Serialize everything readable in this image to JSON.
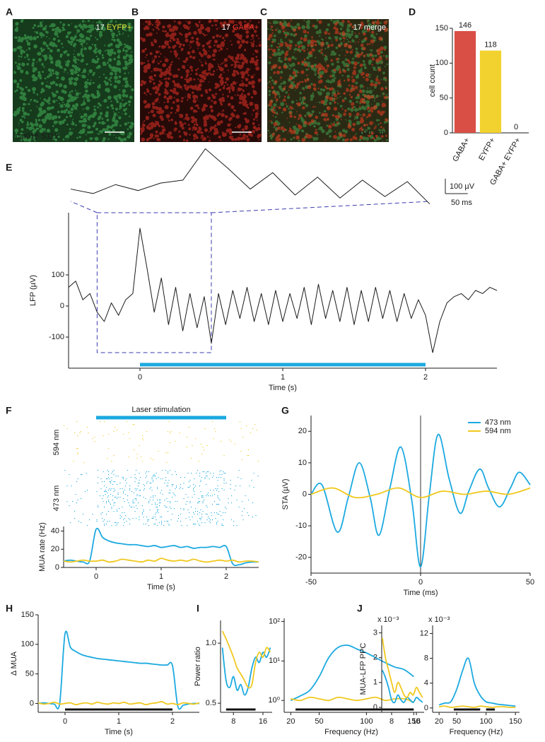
{
  "panel_labels": [
    "A",
    "B",
    "C",
    "D",
    "E",
    "F",
    "G",
    "H",
    "I",
    "J"
  ],
  "images": [
    {
      "number": "17",
      "label": "EYFP+",
      "label_color": "#e8e83a",
      "caption": "cat016 S112"
    },
    {
      "number": "17",
      "label": "GABA+",
      "label_color": "#e8342a"
    },
    {
      "number": "17",
      "label": "merge",
      "label_color": "#ffffff",
      "scale_label": "100 µm"
    }
  ],
  "chart_data": [
    {
      "type": "bar",
      "y_label": "cell count",
      "categories": [
        "GABA+",
        "EYFP+",
        "GABA+ EYFP+"
      ],
      "values": [
        146,
        118,
        0
      ],
      "colors": [
        "#d94f45",
        "#f2d22e",
        "#d94f45"
      ],
      "ylim": [
        0,
        150
      ],
      "yticks": [
        0,
        50,
        100,
        150
      ]
    },
    {
      "type": "line",
      "y_label": "LFP (µV)",
      "x_label": "Time (s)",
      "x": [
        -0.5,
        -0.45,
        -0.4,
        -0.35,
        -0.3,
        -0.25,
        -0.2,
        -0.15,
        -0.1,
        -0.05,
        0,
        0.05,
        0.1,
        0.15,
        0.2,
        0.25,
        0.3,
        0.35,
        0.4,
        0.45,
        0.5,
        0.55,
        0.6,
        0.65,
        0.7,
        0.75,
        0.8,
        0.85,
        0.9,
        0.95,
        1,
        1.05,
        1.1,
        1.15,
        1.2,
        1.25,
        1.3,
        1.35,
        1.4,
        1.45,
        1.5,
        1.55,
        1.6,
        1.65,
        1.7,
        1.75,
        1.8,
        1.85,
        1.9,
        1.95,
        2,
        2.05,
        2.1,
        2.15,
        2.2,
        2.25,
        2.3,
        2.35,
        2.4,
        2.45,
        2.5
      ],
      "series": [
        {
          "color": "#1a1a1a",
          "values": [
            60,
            80,
            20,
            40,
            -20,
            -50,
            10,
            -30,
            20,
            40,
            250,
            120,
            -20,
            90,
            -60,
            60,
            -80,
            40,
            -70,
            30,
            -120,
            40,
            -60,
            50,
            -40,
            60,
            -50,
            40,
            -60,
            50,
            -50,
            40,
            -40,
            60,
            -60,
            70,
            -40,
            50,
            -50,
            60,
            -60,
            50,
            -50,
            60,
            -40,
            50,
            -50,
            40,
            -40,
            20,
            -30,
            -150,
            -50,
            10,
            30,
            40,
            20,
            50,
            40,
            60,
            50
          ]
        }
      ],
      "xlim": [
        -0.5,
        2.5
      ],
      "ylim": [
        -200,
        300
      ],
      "xticks": [
        0,
        1,
        2
      ],
      "yticks": [
        -100,
        0,
        100
      ],
      "stimulus": [
        0,
        2
      ],
      "stimulus_color": "#1ba9e0",
      "zoom_window": {
        "x": [
          -0.3,
          0.5
        ],
        "y": [
          -150,
          300
        ]
      },
      "scale_bar": {
        "y": 100,
        "y_label": "100 µV",
        "x": 0.05,
        "x_label": "50 ms"
      }
    },
    {
      "type": "line",
      "y_label": "MUA rate (Hz)",
      "x_label": "Time (s)",
      "x": [
        -0.5,
        -0.4,
        -0.3,
        -0.2,
        -0.1,
        0,
        0.1,
        0.2,
        0.3,
        0.4,
        0.5,
        0.6,
        0.7,
        0.8,
        0.9,
        1,
        1.1,
        1.2,
        1.3,
        1.4,
        1.5,
        1.6,
        1.7,
        1.8,
        1.9,
        2,
        2.1,
        2.2,
        2.3,
        2.4,
        2.5
      ],
      "series": [
        {
          "name": "473 nm",
          "color": "#1ba9e0",
          "values": [
            7,
            8,
            7,
            6,
            7,
            42,
            33,
            29,
            27,
            26,
            25,
            25,
            24,
            23,
            24,
            22,
            23,
            24,
            22,
            23,
            21,
            22,
            22,
            23,
            22,
            23,
            4,
            3,
            5,
            6,
            6
          ]
        },
        {
          "name": "594 nm",
          "color": "#f0c81e",
          "values": [
            7,
            6,
            7,
            8,
            7,
            7,
            8,
            6,
            7,
            9,
            8,
            7,
            6,
            8,
            7,
            10,
            8,
            7,
            8,
            7,
            9,
            7,
            6,
            7,
            8,
            7,
            8,
            6,
            7,
            7,
            6
          ]
        }
      ],
      "xlim": [
        -0.5,
        2.5
      ],
      "ylim": [
        0,
        45
      ],
      "xticks": [
        0,
        1,
        2
      ],
      "yticks": [
        0,
        20,
        40
      ],
      "stimulus": [
        0,
        2
      ],
      "stimulus_color": "#1ba9e0",
      "stimulus_label": "Laser stimulation"
    },
    {
      "type": "line",
      "y_label": "STA (µV)",
      "x_label": "Time (ms)",
      "series": [
        {
          "name": "473 nm",
          "color": "#1ba9e0",
          "x": [
            -50,
            -45,
            -38,
            -33,
            -28,
            -23,
            -19,
            -14,
            -9,
            -4,
            0,
            4,
            8,
            13,
            18,
            22,
            27,
            31,
            36,
            41,
            45,
            50
          ],
          "values": [
            0,
            3,
            -12,
            -1,
            10,
            -1,
            -13,
            2,
            15,
            -2,
            -23,
            0,
            19,
            5,
            -6,
            1,
            8,
            2,
            -4,
            2,
            7,
            3
          ]
        },
        {
          "name": "594 nm",
          "color": "#f0c81e",
          "x": [
            -50,
            -40,
            -30,
            -20,
            -10,
            0,
            10,
            20,
            30,
            40,
            50
          ],
          "values": [
            0,
            2,
            -1,
            0,
            2,
            -1,
            1,
            0,
            1,
            0,
            2
          ]
        }
      ],
      "xlim": [
        -50,
        50
      ],
      "ylim": [
        -25,
        25
      ],
      "xticks": [
        -50,
        0,
        50
      ],
      "yticks": [
        -20,
        -10,
        0,
        10,
        20
      ],
      "vline": 0,
      "legend": "upper right"
    },
    {
      "type": "line",
      "y_label": "Δ MUA",
      "x_label": "Time (s)",
      "x": [
        -0.5,
        -0.4,
        -0.3,
        -0.2,
        -0.1,
        0,
        0.1,
        0.2,
        0.3,
        0.4,
        0.5,
        0.6,
        0.7,
        0.8,
        0.9,
        1,
        1.1,
        1.2,
        1.3,
        1.4,
        1.5,
        1.6,
        1.7,
        1.8,
        1.9,
        2,
        2.1,
        2.2,
        2.3,
        2.4,
        2.5
      ],
      "series": [
        {
          "color": "#1ba9e0",
          "values": [
            0,
            1,
            0,
            -1,
            0,
            118,
            95,
            88,
            83,
            80,
            78,
            76,
            75,
            74,
            73,
            72,
            71,
            70,
            69,
            68,
            68,
            67,
            66,
            65,
            65,
            64,
            -5,
            -3,
            -1,
            0,
            0
          ]
        },
        {
          "color": "#f0c81e",
          "values": [
            1,
            -1,
            0,
            2,
            -1,
            0,
            1,
            -2,
            0,
            1,
            -1,
            2,
            0,
            -1,
            1,
            0,
            2,
            -1,
            0,
            1,
            -2,
            0,
            1,
            3,
            -1,
            0,
            -2,
            1,
            0,
            -1,
            1
          ]
        }
      ],
      "xlim": [
        -0.5,
        2.5
      ],
      "ylim": [
        -15,
        150
      ],
      "xticks": [
        0,
        1,
        2
      ],
      "yticks": [
        0,
        50,
        100,
        150
      ],
      "significance": [
        [
          0,
          2
        ]
      ]
    },
    {
      "type": "line",
      "y_label": "Power ratio",
      "x": [
        5,
        6,
        7,
        8,
        9,
        10,
        11,
        12,
        13,
        14,
        15,
        16,
        17,
        18
      ],
      "series": [
        {
          "color": "#1ba9e0",
          "values": [
            0.95,
            0.65,
            0.6,
            0.68,
            0.58,
            0.62,
            0.55,
            0.6,
            0.75,
            0.85,
            0.8,
            0.9,
            0.85,
            0.95
          ]
        },
        {
          "color": "#f0c81e",
          "values": [
            1.15,
            1.05,
            0.95,
            0.85,
            0.75,
            0.7,
            0.65,
            0.6,
            0.62,
            0.8,
            0.9,
            0.85,
            0.95,
            0.9
          ]
        }
      ],
      "log_y": true,
      "xlim": [
        4.5,
        18.5
      ],
      "ylim": [
        0.45,
        1.3
      ],
      "xticks": [
        8,
        16
      ],
      "yticks": [
        0.5,
        {
          "value": 1,
          "label": "1.0"
        }
      ],
      "significance": [
        [
          6,
          14
        ]
      ]
    },
    {
      "type": "line",
      "x_label": "Frequency (Hz)",
      "x": [
        20,
        30,
        40,
        50,
        60,
        70,
        80,
        90,
        100,
        110,
        120,
        130,
        140,
        150
      ],
      "series": [
        {
          "color": "#1ba9e0",
          "values": [
            1,
            1.3,
            1.8,
            4,
            12,
            22,
            25,
            20,
            16,
            12,
            9,
            7,
            6,
            4
          ]
        },
        {
          "color": "#f0c81e",
          "values": [
            1.1,
            1,
            1.2,
            1.1,
            1,
            1.2,
            1.1,
            1,
            1.1,
            1.2,
            1,
            1.1,
            1.1,
            0.9
          ]
        }
      ],
      "log_y": true,
      "xlim": [
        13,
        155
      ],
      "ylim": [
        0.5,
        120
      ],
      "xticks": [
        20,
        50,
        100,
        150
      ],
      "yticks": [
        {
          "value": 1,
          "label": "10⁰"
        },
        {
          "value": 10,
          "label": "10¹"
        },
        {
          "value": 100,
          "label": "10²"
        }
      ],
      "significance": [
        [
          25,
          150
        ]
      ]
    },
    {
      "type": "line",
      "y_label": "MUA-LFP PPC",
      "annotation": "x 10⁻³",
      "x": [
        5,
        6,
        7,
        8,
        9,
        10,
        11,
        12,
        13,
        14,
        15,
        16,
        17,
        18
      ],
      "series": [
        {
          "color": "#1ba9e0",
          "values": [
            1.5,
            1.2,
            0.8,
            0.3,
            0.2,
            0.5,
            0.3,
            0.2,
            0.4,
            0.3,
            0.2,
            0.4,
            0.3,
            0.2
          ]
        },
        {
          "color": "#f0c81e",
          "values": [
            2.8,
            2,
            1.5,
            1,
            0.6,
            1,
            0.8,
            0.5,
            0.4,
            0.6,
            0.5,
            0.8,
            0.6,
            0.4
          ]
        }
      ],
      "xlim": [
        4.8,
        18.5
      ],
      "ylim": [
        -0.2,
        3.3
      ],
      "xticks": [
        8,
        16
      ],
      "yticks": [
        0,
        1,
        2,
        3
      ],
      "significance": [
        [
          11,
          13
        ]
      ]
    },
    {
      "type": "line",
      "x_label": "Frequency (Hz)",
      "annotation": "x 10⁻³",
      "x": [
        20,
        30,
        40,
        50,
        60,
        70,
        80,
        90,
        100,
        110,
        120,
        130,
        140,
        150
      ],
      "series": [
        {
          "color": "#1ba9e0",
          "values": [
            0.5,
            0.8,
            1,
            3,
            6,
            8,
            4,
            2,
            1,
            0.8,
            0.6,
            0.5,
            0.4,
            0.3
          ]
        },
        {
          "color": "#f0c81e",
          "values": [
            0.2,
            0.3,
            0.1,
            0.2,
            0.3,
            0.2,
            0.1,
            0.3,
            0.2,
            0.1,
            0.2,
            0.2,
            0.1,
            0.1
          ]
        }
      ],
      "xlim": [
        9,
        157
      ],
      "ylim": [
        -0.7,
        13.3
      ],
      "xticks": [
        20,
        50,
        100,
        150
      ],
      "yticks": [
        0,
        4,
        8,
        12
      ],
      "significance": [
        [
          45,
          90
        ],
        [
          100,
          115
        ]
      ]
    }
  ]
}
